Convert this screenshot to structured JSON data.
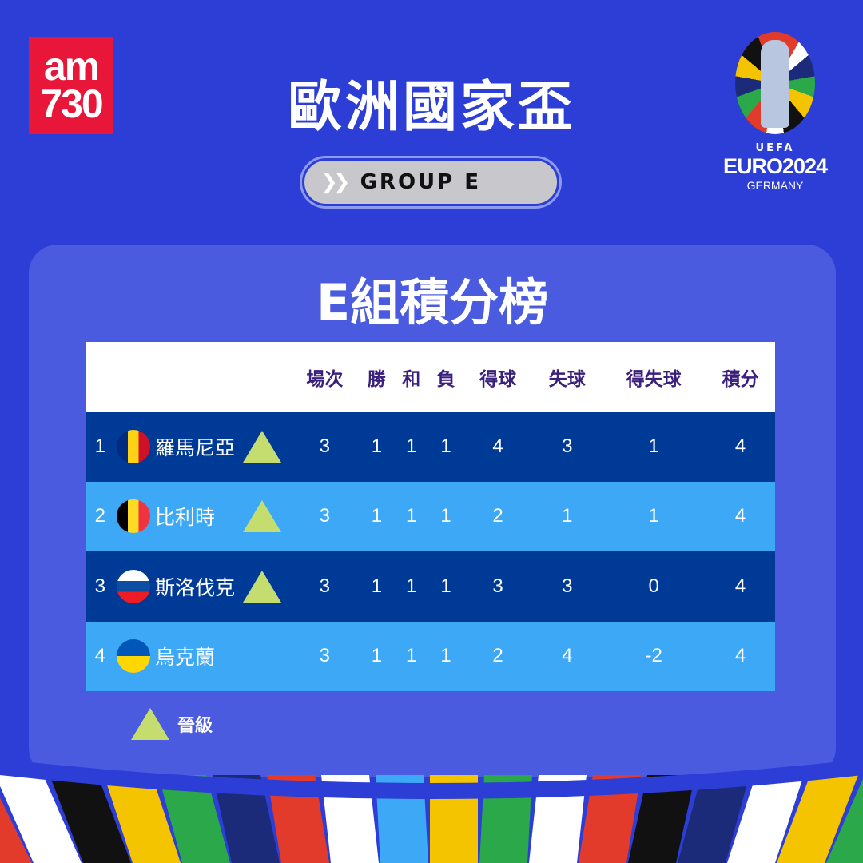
{
  "brand": {
    "logo_line1": "am",
    "logo_line2": "730"
  },
  "header": {
    "title": "歐洲國家盃",
    "group_label": "GROUP E",
    "chevron_icon": "double-chevron-right-icon"
  },
  "euro_logo": {
    "uefa": "UEFA",
    "name": "EURO2024",
    "country": "GERMANY"
  },
  "standings": {
    "title": "E組積分榜",
    "columns": [
      "場次",
      "勝",
      "和",
      "負",
      "得球",
      "失球",
      "得失球",
      "積分"
    ],
    "rows": [
      {
        "rank": "1",
        "team": "羅馬尼亞",
        "flag": [
          "#002b7f",
          "#fcd116",
          "#ce1126"
        ],
        "qualified": true,
        "values": [
          "3",
          "1",
          "1",
          "1",
          "4",
          "3",
          "1",
          "4"
        ]
      },
      {
        "rank": "2",
        "team": "比利時",
        "flag": [
          "#000000",
          "#fdda24",
          "#ef3340"
        ],
        "qualified": true,
        "values": [
          "3",
          "1",
          "1",
          "1",
          "2",
          "1",
          "1",
          "4"
        ]
      },
      {
        "rank": "3",
        "team": "斯洛伐克",
        "flag": [
          "#ffffff",
          "#0b4ea2",
          "#ee1c25"
        ],
        "qualified": true,
        "values": [
          "3",
          "1",
          "1",
          "1",
          "3",
          "3",
          "0",
          "4"
        ]
      },
      {
        "rank": "4",
        "team": "烏克蘭",
        "flag": [
          "#0057b7",
          "#ffd700"
        ],
        "qualified": false,
        "values": [
          "3",
          "1",
          "1",
          "1",
          "2",
          "4",
          "-2",
          "4"
        ]
      }
    ],
    "legend": {
      "label": "晉級",
      "color": "#c5dc6e"
    }
  },
  "colors": {
    "background": "#2c3ed6",
    "panel": "#4a5be0",
    "row_dark": "#003a97",
    "row_light": "#3da8f6",
    "header_text": "#3a1f7d"
  }
}
